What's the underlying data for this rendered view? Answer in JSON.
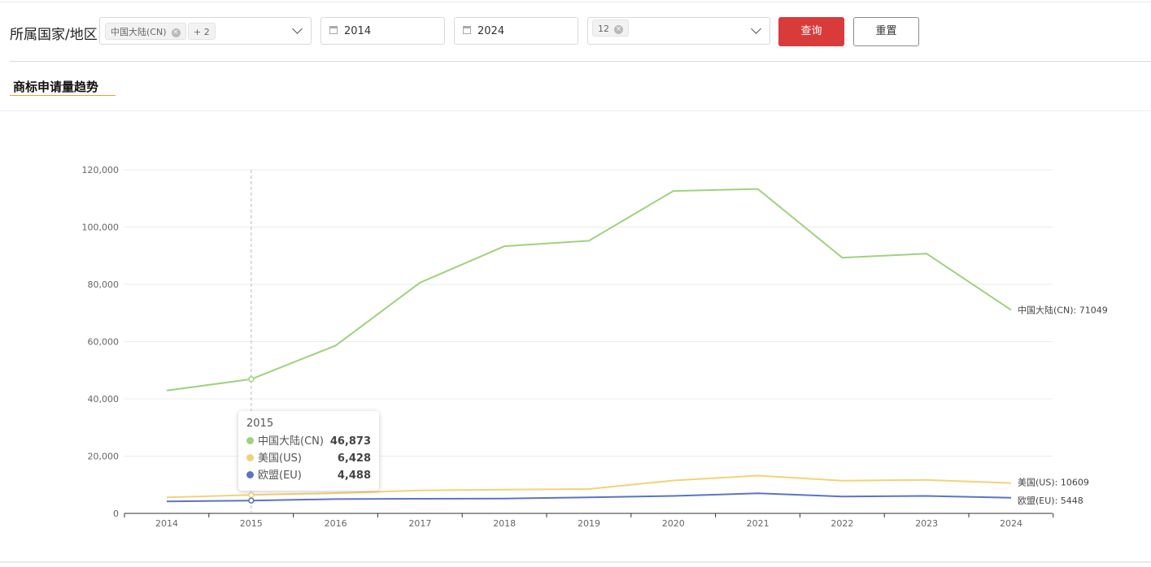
{
  "filters": {
    "region_label": "所属国家/地区",
    "region_tags": [
      "中国大陆(CN)",
      "+ 2"
    ],
    "start_year": "2014",
    "end_year": "2024",
    "month_tag": "12",
    "query_label": "查询",
    "reset_label": "重置"
  },
  "section_title": "商标申请量趋势",
  "colors": {
    "cn": "#9fd27e",
    "us": "#f3d276",
    "eu": "#5b74c4",
    "query": "#d93b3b"
  },
  "chart_data": {
    "type": "line",
    "x": [
      "2014",
      "2015",
      "2016",
      "2017",
      "2018",
      "2019",
      "2020",
      "2021",
      "2022",
      "2023",
      "2024"
    ],
    "ylim": [
      0,
      120000
    ],
    "yticks": [
      0,
      20000,
      40000,
      60000,
      80000,
      100000,
      120000
    ],
    "ytick_labels": [
      "0",
      "20,000",
      "40,000",
      "60,000",
      "80,000",
      "100,000",
      "120,000"
    ],
    "grid": true,
    "series": [
      {
        "key": "cn",
        "name": "中国大陆(CN)",
        "values": [
          42900,
          46873,
          58600,
          80600,
          93300,
          95200,
          112600,
          113300,
          89300,
          90700,
          71049
        ],
        "end_label": "中国大陆(CN): 71049"
      },
      {
        "key": "us",
        "name": "美国(US)",
        "values": [
          5600,
          6428,
          7100,
          8000,
          8300,
          8500,
          11500,
          13200,
          11400,
          11700,
          10609
        ],
        "end_label": "美国(US): 10609"
      },
      {
        "key": "eu",
        "name": "欧盟(EU)",
        "values": [
          4200,
          4488,
          5000,
          5100,
          5200,
          5600,
          6100,
          7000,
          5900,
          6100,
          5448
        ],
        "end_label": "欧盟(EU): 5448"
      }
    ],
    "tooltip": {
      "title": "2015",
      "rows": [
        {
          "key": "cn",
          "name": "中国大陆(CN)",
          "value": "46,873"
        },
        {
          "key": "us",
          "name": "美国(US)",
          "value": "6,428"
        },
        {
          "key": "eu",
          "name": "欧盟(EU)",
          "value": "4,488"
        }
      ]
    }
  }
}
